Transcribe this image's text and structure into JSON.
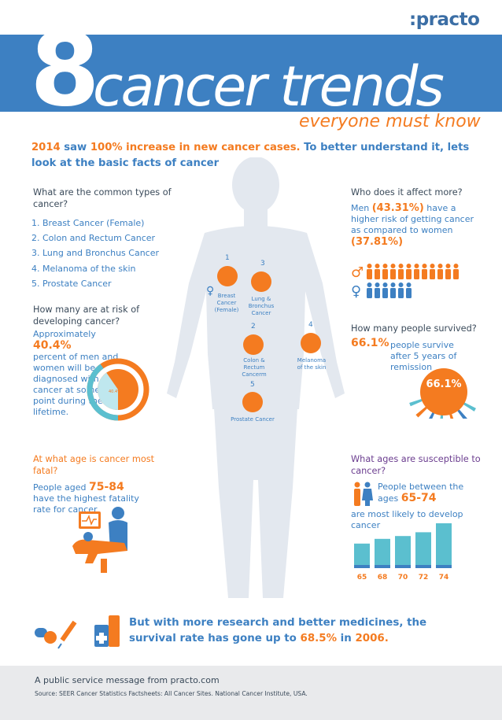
{
  "header": {
    "logo": ":practo",
    "big_number": "8",
    "title": "cancer trends",
    "subtitle": "everyone must know"
  },
  "intro": {
    "year": "2014",
    "saw": " saw ",
    "increase": "100% increase in new cancer cases.",
    "rest": " To better understand it, lets look at the basic facts of cancer"
  },
  "types": {
    "heading": "What are the common types of cancer?",
    "items": [
      "1. Breast Cancer (Female)",
      "2. Colon and Rectum Cancer",
      "3. Lung and Bronchus Cancer",
      "4. Melanoma of the skin",
      "5. Prostate Cancer"
    ]
  },
  "risk": {
    "heading": "How many are at risk of developing cancer?",
    "prefix": "Approximately ",
    "percent": "40.4%",
    "text": "percent of men and women will be diagnosed with cancer at some point during their lifetime.",
    "donut_value": 0.404,
    "donut_label": "40.4%"
  },
  "fatal": {
    "heading": "At what age is cancer most fatal?",
    "prefix": "People aged ",
    "ages": "75-84",
    "text": "have the highest fatality rate for cancer"
  },
  "organs": [
    {
      "num": "1",
      "label": "Breast Cancer (Female)"
    },
    {
      "num": "3",
      "label": "Lung & Bronchus Cancer"
    },
    {
      "num": "2",
      "label": "Colon & Rectum Cancerm"
    },
    {
      "num": "4",
      "label": "Melanoma of the skin"
    },
    {
      "num": "5",
      "label": "Prostate Cancer"
    }
  ],
  "who": {
    "heading": "Who does it affect more?",
    "men_prefix": "Men ",
    "men_pct": "(43.31%)",
    "text": " have a higher risk of getting cancer as compared to women",
    "women_pct": "(37.81%)",
    "male_symbol": "♂",
    "female_symbol": "♀"
  },
  "survived": {
    "heading": "How many people survived?",
    "pct": "66.1%",
    "text": "people survive after 5 years of remission",
    "badge": "66.1%"
  },
  "ages": {
    "heading": "What ages are susceptible to cancer?",
    "line1": "People between the ages ",
    "range": "65-74",
    "line2": "are most likely to develop cancer",
    "bars": [
      {
        "label": "65",
        "value": 0.52
      },
      {
        "label": "68",
        "value": 0.62
      },
      {
        "label": "70",
        "value": 0.68
      },
      {
        "label": "72",
        "value": 0.76
      },
      {
        "label": "74",
        "value": 0.95
      }
    ]
  },
  "footer": {
    "msg_a": "But with more research and better medicines, the survival rate has gone up to ",
    "pct": "68.5%",
    "msg_b": " in ",
    "year": "2006.",
    "psm": "A public service message from practo.com",
    "source": "Source: SEER Cancer Statistics Factsheets: All Cancer Sites. National Cancer Institute, USA."
  },
  "colors": {
    "brand_blue": "#3d80c2",
    "accent_orange": "#f47b20",
    "teal": "#5bbfcf",
    "silhouette": "#e3e8ef"
  }
}
